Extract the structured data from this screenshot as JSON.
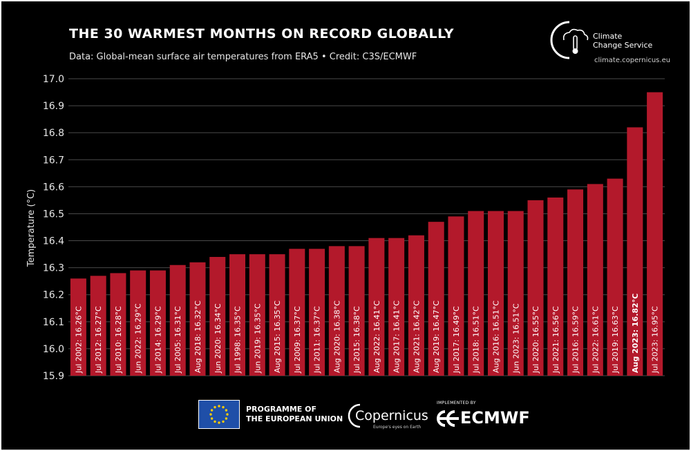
{
  "header": {
    "title": "THE 30 WARMEST MONTHS ON RECORD GLOBALLY",
    "subtitle": "Data: Global-mean surface air temperatures from ERA5 • Credit: C3S/ECMWF"
  },
  "brand": {
    "c3s_line1": "Climate",
    "c3s_line2": "Change Service",
    "c3s_url": "climate.copernicus.eu"
  },
  "footer": {
    "eu_line1": "PROGRAMME OF",
    "eu_line2": "THE EUROPEAN UNION",
    "copernicus_text": "Copernicus",
    "copernicus_tagline": "Europe's eyes on Earth",
    "ecmwf_implemented": "IMPLEMENTED BY",
    "ecmwf_text": "ECMWF"
  },
  "colors": {
    "background": "#000000",
    "bar": "#b3192b",
    "grid": "#4a4a4a",
    "text": "#ffffff",
    "eu_blue": "#1f4fa8",
    "eu_star": "#ffcc00"
  },
  "chart_data": {
    "type": "bar",
    "ylabel": "Temperature (°C)",
    "xlabel": "",
    "ylim": [
      15.9,
      17.0
    ],
    "yticks": [
      15.9,
      16.0,
      16.1,
      16.2,
      16.3,
      16.4,
      16.5,
      16.6,
      16.7,
      16.8,
      16.9,
      17.0
    ],
    "ytick_labels": [
      "15.9",
      "16.0",
      "16.1",
      "16.2",
      "16.3",
      "16.4",
      "16.5",
      "16.6",
      "16.7",
      "16.8",
      "16.9",
      "17.0"
    ],
    "grid": true,
    "categories": [
      "Jul 2002: 16.26°C",
      "Jul 2012: 16.27°C",
      "Jul 2010: 16.28°C",
      "Jun 2022: 16.29°C",
      "Jul 2014: 16.29°C",
      "Jul 2005: 16.31°C",
      "Aug 2018: 16.32°C",
      "Jun 2020: 16.34°C",
      "Jul 1998: 16.35°C",
      "Jun 2019: 16.35°C",
      "Aug 2015: 16.35°C",
      "Jul 2009: 16.37°C",
      "Jul 2011: 16.37°C",
      "Aug 2020: 16.38°C",
      "Jul 2015: 16.38°C",
      "Aug 2022: 16.41°C",
      "Aug 2017: 16.41°C",
      "Aug 2021: 16.42°C",
      "Aug 2019: 16.47°C",
      "Jul 2017: 16.49°C",
      "Jul 2018: 16.51°C",
      "Aug 2016: 16.51°C",
      "Jun 2023: 16.51°C",
      "Jul 2020: 16.55°C",
      "Jul 2021: 16.56°C",
      "Jul 2016: 16.59°C",
      "Jul 2022: 16.61°C",
      "Jul 2019: 16.63°C",
      "Aug 2023: 16.82°C",
      "Jul 2023: 16.95°C"
    ],
    "values": [
      16.26,
      16.27,
      16.28,
      16.29,
      16.29,
      16.31,
      16.32,
      16.34,
      16.35,
      16.35,
      16.35,
      16.37,
      16.37,
      16.38,
      16.38,
      16.41,
      16.41,
      16.42,
      16.47,
      16.49,
      16.51,
      16.51,
      16.51,
      16.55,
      16.56,
      16.59,
      16.61,
      16.63,
      16.82,
      16.95
    ],
    "bold_labels": [
      "Aug 2023: 16.82°C"
    ]
  }
}
